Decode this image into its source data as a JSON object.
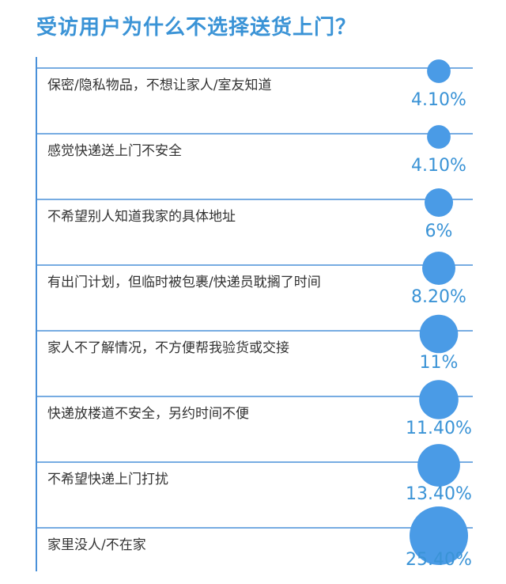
{
  "chart_data": {
    "type": "bubble",
    "title": "受访用户为什么不选择送货上门？",
    "categories": [
      "保密/隐私物品，不想让家人/室友知道",
      "感觉快递送上门不安全",
      "不希望别人知道我家的具体地址",
      "有出门计划，但临时被包裹/快递员耽搁了时间",
      "家人不了解情况，不方便帮我验货或交接",
      "快递放楼道不安全，另约时间不便",
      "不希望快递上门打扰",
      "家里没人/不在家"
    ],
    "values": [
      4.1,
      4.1,
      6,
      8.2,
      11,
      11.4,
      13.4,
      25.4
    ],
    "value_labels": [
      "4.10%",
      "4.10%",
      "6%",
      "8.20%",
      "11%",
      "11.40%",
      "13.40%",
      "25.40%"
    ],
    "unit": "%"
  },
  "colors": {
    "accent": "#3a93d6",
    "bubble": "#4a9be6",
    "line": "#4a90d9",
    "text": "#333333"
  }
}
